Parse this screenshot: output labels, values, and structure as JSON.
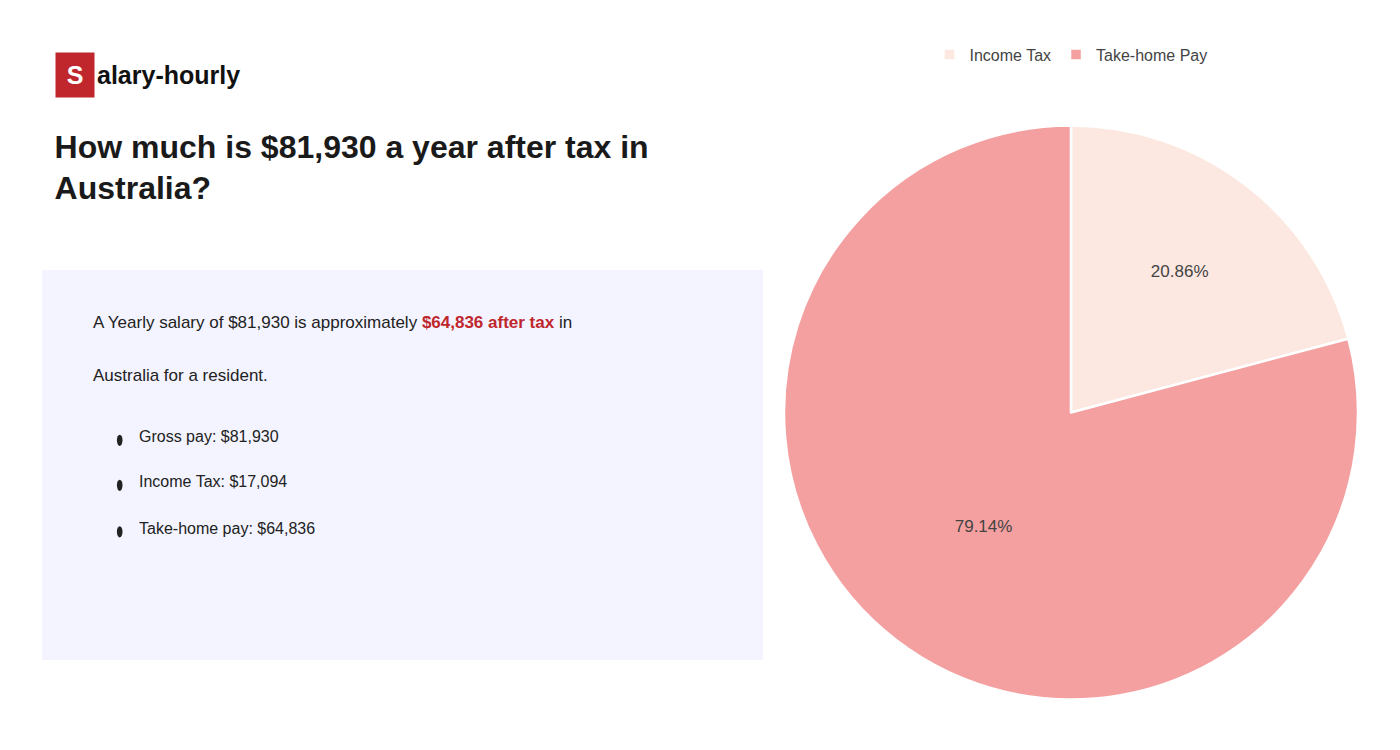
{
  "chart_data": {
    "type": "pie",
    "title": "How much is $81,930 a year after tax in\nAustralia?",
    "categories": [
      "Income Tax",
      "Take-home Pay"
    ],
    "values": [
      20.86,
      79.14
    ],
    "value_labels": [
      "20.86%",
      "79.14%"
    ],
    "data_labels": true,
    "colors": [
      "#fce8e0",
      "#f4a0a0"
    ],
    "legend": "top",
    "annotations": [
      {
        "text": "S",
        "color": "#c0272d"
      },
      {
        "text": "alary-hourly"
      },
      {
        "text": "A Yearly salary of $81,930 is approximately "
      },
      {
        "text": "$64,836 after tax",
        "color": "#c0272d"
      },
      {
        "text": " in"
      },
      {
        "text": "Australia for a resident."
      },
      {
        "text": "Gross pay: $81,930"
      },
      {
        "text": "Income Tax: $17,094"
      },
      {
        "text": "Take-home pay: $64,836"
      }
    ]
  }
}
